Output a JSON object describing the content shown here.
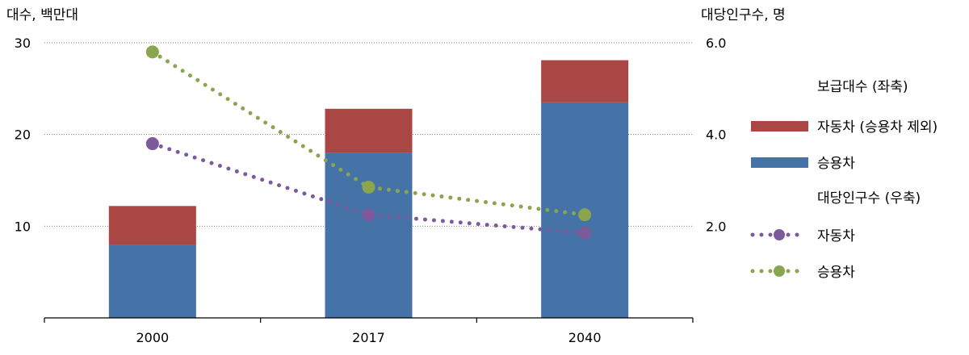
{
  "chart_data": {
    "type": "bar",
    "y_left_label": "대수, 백만대",
    "y_right_label": "대당인구수, 명",
    "categories": [
      "2000",
      "2017",
      "2040"
    ],
    "ylim_left": [
      0,
      30
    ],
    "ylim_right": [
      0,
      6
    ],
    "yticks_left": [
      "10",
      "20",
      "30"
    ],
    "yticks_right": [
      "2.0",
      "4.0",
      "6.0"
    ],
    "grid": "horizontal-dotted",
    "bar_series": [
      {
        "name": "승용차",
        "color": "#4572A7",
        "values": [
          8.0,
          18.0,
          23.5
        ]
      },
      {
        "name": "자동차 (승용차 제외)",
        "color": "#AA4643",
        "values": [
          4.2,
          4.8,
          4.6
        ]
      }
    ],
    "line_series": [
      {
        "name": "자동차",
        "color": "#7D5A9B",
        "values": [
          3.8,
          2.25,
          1.85
        ]
      },
      {
        "name": "승용차",
        "color": "#89A54E",
        "values": [
          5.8,
          2.85,
          2.25
        ]
      }
    ],
    "legend": {
      "bar_group_title": "보급대수 (좌축)",
      "line_group_title": "대당인구수 (우축)",
      "bar_items": [
        "자동차 (승용차 제외)",
        "승용차"
      ],
      "line_items": [
        "자동차",
        "승용차"
      ],
      "placement": "right"
    }
  }
}
